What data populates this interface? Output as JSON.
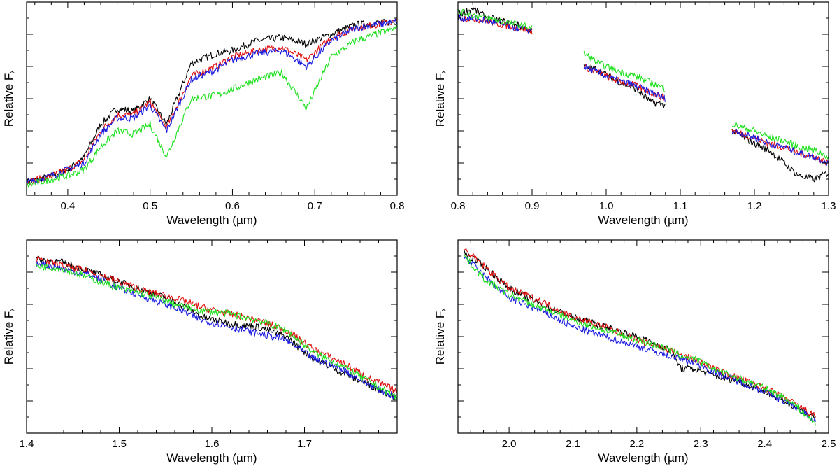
{
  "figure": {
    "caption_style": "four-panel spectral comparison"
  },
  "colors": {
    "black": "#000000",
    "red": "#e01010",
    "blue": "#1a1ae0",
    "green": "#1fe01f"
  },
  "chart_data": [
    {
      "type": "line",
      "xlabel": "Wavelength (µm)",
      "ylabel": "Relative F",
      "ylabel_sub": "λ",
      "xlim": [
        0.35,
        0.8
      ],
      "ylim": [
        0,
        6
      ],
      "xticks": [
        0.4,
        0.5,
        0.6,
        0.7,
        0.8
      ],
      "xtick_labels": [
        "0.4",
        "0.5",
        "0.6",
        "0.7",
        "0.8"
      ],
      "yticks_major": [
        1,
        2,
        3,
        4,
        5
      ],
      "segments": [
        [
          0.35,
          0.8
        ]
      ],
      "series": [
        {
          "name": "black",
          "color": "#000000",
          "x": [
            0.35,
            0.38,
            0.4,
            0.42,
            0.44,
            0.46,
            0.48,
            0.5,
            0.52,
            0.55,
            0.58,
            0.6,
            0.63,
            0.66,
            0.69,
            0.72,
            0.75,
            0.8
          ],
          "y": [
            0.4,
            0.6,
            0.8,
            1.2,
            2.2,
            2.7,
            2.6,
            3.0,
            2.2,
            4.1,
            4.4,
            4.5,
            4.8,
            4.9,
            4.7,
            5.0,
            5.3,
            5.4
          ]
        },
        {
          "name": "red",
          "color": "#e01010",
          "x": [
            0.35,
            0.38,
            0.4,
            0.42,
            0.44,
            0.46,
            0.48,
            0.5,
            0.52,
            0.55,
            0.58,
            0.6,
            0.63,
            0.66,
            0.69,
            0.72,
            0.75,
            0.8
          ],
          "y": [
            0.4,
            0.6,
            0.8,
            1.1,
            2.0,
            2.5,
            2.5,
            2.9,
            2.1,
            3.7,
            4.0,
            4.3,
            4.5,
            4.6,
            4.2,
            4.9,
            5.2,
            5.4
          ]
        },
        {
          "name": "blue",
          "color": "#1a1ae0",
          "x": [
            0.35,
            0.38,
            0.4,
            0.42,
            0.44,
            0.46,
            0.48,
            0.5,
            0.52,
            0.55,
            0.58,
            0.6,
            0.63,
            0.66,
            0.69,
            0.72,
            0.75,
            0.8
          ],
          "y": [
            0.4,
            0.6,
            0.8,
            1.0,
            1.9,
            2.4,
            2.4,
            2.8,
            2.0,
            3.6,
            3.9,
            4.2,
            4.4,
            4.5,
            4.0,
            4.8,
            5.2,
            5.4
          ]
        },
        {
          "name": "green",
          "color": "#1fe01f",
          "x": [
            0.35,
            0.38,
            0.4,
            0.42,
            0.44,
            0.46,
            0.48,
            0.5,
            0.52,
            0.55,
            0.58,
            0.6,
            0.63,
            0.66,
            0.69,
            0.72,
            0.75,
            0.8
          ],
          "y": [
            0.3,
            0.5,
            0.6,
            0.8,
            1.5,
            2.0,
            1.9,
            2.2,
            1.2,
            3.0,
            3.1,
            3.3,
            3.6,
            3.8,
            2.7,
            4.3,
            4.8,
            5.2
          ]
        }
      ]
    },
    {
      "type": "line",
      "xlabel": "Wavelength (µm)",
      "ylabel": "Relative F",
      "ylabel_sub": "λ",
      "xlim": [
        0.8,
        1.3
      ],
      "ylim": [
        0,
        6
      ],
      "xticks": [
        0.8,
        0.9,
        1.0,
        1.1,
        1.2,
        1.3
      ],
      "xtick_labels": [
        "0.8",
        "0.9",
        "1.0",
        "1.1",
        "1.2",
        "1.3"
      ],
      "yticks_major": [
        1,
        2,
        3,
        4,
        5
      ],
      "segments": [
        [
          0.8,
          0.9
        ],
        [
          0.97,
          1.08
        ],
        [
          1.17,
          1.3
        ]
      ],
      "series": [
        {
          "name": "black",
          "color": "#000000",
          "x": [
            0.8,
            0.82,
            0.84,
            0.86,
            0.88,
            0.9,
            0.97,
            0.99,
            1.01,
            1.04,
            1.06,
            1.08,
            1.17,
            1.2,
            1.22,
            1.24,
            1.26,
            1.28,
            1.3
          ],
          "y": [
            5.6,
            5.8,
            5.5,
            5.4,
            5.3,
            5.1,
            4.0,
            3.9,
            3.6,
            3.3,
            2.9,
            2.8,
            2.0,
            1.6,
            1.4,
            1.0,
            0.6,
            0.5,
            0.7
          ]
        },
        {
          "name": "red",
          "color": "#e01010",
          "x": [
            0.8,
            0.82,
            0.84,
            0.86,
            0.88,
            0.9,
            0.97,
            0.99,
            1.01,
            1.04,
            1.06,
            1.08,
            1.17,
            1.2,
            1.22,
            1.24,
            1.26,
            1.28,
            1.3
          ],
          "y": [
            5.5,
            5.5,
            5.4,
            5.3,
            5.2,
            5.1,
            4.0,
            3.8,
            3.6,
            3.4,
            3.2,
            3.0,
            2.0,
            1.8,
            1.6,
            1.5,
            1.3,
            1.2,
            1.0
          ]
        },
        {
          "name": "blue",
          "color": "#1a1ae0",
          "x": [
            0.8,
            0.82,
            0.84,
            0.86,
            0.88,
            0.9,
            0.97,
            0.99,
            1.01,
            1.04,
            1.06,
            1.08,
            1.17,
            1.2,
            1.22,
            1.24,
            1.26,
            1.28,
            1.3
          ],
          "y": [
            5.5,
            5.5,
            5.4,
            5.3,
            5.2,
            5.1,
            4.0,
            3.8,
            3.6,
            3.4,
            3.2,
            3.0,
            2.0,
            1.8,
            1.6,
            1.5,
            1.3,
            1.2,
            1.0
          ]
        },
        {
          "name": "green",
          "color": "#1fe01f",
          "x": [
            0.8,
            0.82,
            0.84,
            0.86,
            0.88,
            0.9,
            0.97,
            0.99,
            1.01,
            1.04,
            1.06,
            1.08,
            1.17,
            1.2,
            1.22,
            1.24,
            1.26,
            1.28,
            1.3
          ],
          "y": [
            5.7,
            5.6,
            5.5,
            5.4,
            5.3,
            5.2,
            4.4,
            4.1,
            3.9,
            3.7,
            3.5,
            3.3,
            2.2,
            2.0,
            1.8,
            1.7,
            1.5,
            1.4,
            1.2
          ]
        }
      ]
    },
    {
      "type": "line",
      "xlabel": "Wavelength (µm)",
      "ylabel": "Relative F",
      "ylabel_sub": "λ",
      "xlim": [
        1.4,
        1.8
      ],
      "ylim": [
        0,
        6
      ],
      "xticks": [
        1.4,
        1.5,
        1.6,
        1.7
      ],
      "xtick_labels": [
        "1.4",
        "1.5",
        "1.6",
        "1.7"
      ],
      "yticks_major": [
        1,
        2,
        3,
        4,
        5
      ],
      "segments": [
        [
          1.41,
          1.8
        ]
      ],
      "series": [
        {
          "name": "black",
          "color": "#000000",
          "x": [
            1.41,
            1.44,
            1.47,
            1.5,
            1.53,
            1.56,
            1.59,
            1.62,
            1.65,
            1.68,
            1.71,
            1.74,
            1.77,
            1.8
          ],
          "y": [
            5.4,
            5.3,
            5.0,
            4.7,
            4.4,
            4.1,
            3.6,
            3.4,
            3.3,
            3.0,
            2.3,
            1.9,
            1.5,
            1.1
          ]
        },
        {
          "name": "red",
          "color": "#e01010",
          "x": [
            1.41,
            1.44,
            1.47,
            1.5,
            1.53,
            1.56,
            1.59,
            1.62,
            1.65,
            1.68,
            1.71,
            1.74,
            1.77,
            1.8
          ],
          "y": [
            5.4,
            5.2,
            5.0,
            4.7,
            4.4,
            4.2,
            3.9,
            3.7,
            3.5,
            3.2,
            2.6,
            2.2,
            1.7,
            1.3
          ]
        },
        {
          "name": "blue",
          "color": "#1a1ae0",
          "x": [
            1.41,
            1.44,
            1.47,
            1.5,
            1.53,
            1.56,
            1.59,
            1.62,
            1.65,
            1.68,
            1.71,
            1.74,
            1.77,
            1.8
          ],
          "y": [
            5.3,
            5.1,
            4.9,
            4.5,
            4.2,
            3.9,
            3.5,
            3.3,
            3.1,
            2.9,
            2.3,
            2.0,
            1.5,
            1.1
          ]
        },
        {
          "name": "green",
          "color": "#1fe01f",
          "x": [
            1.41,
            1.44,
            1.47,
            1.5,
            1.53,
            1.56,
            1.59,
            1.62,
            1.65,
            1.68,
            1.71,
            1.74,
            1.77,
            1.8
          ],
          "y": [
            5.2,
            5.1,
            4.8,
            4.5,
            4.3,
            4.0,
            3.8,
            3.7,
            3.5,
            3.2,
            2.5,
            2.1,
            1.6,
            1.1
          ]
        }
      ]
    },
    {
      "type": "line",
      "xlabel": "Wavelength (µm)",
      "ylabel": "Relative F",
      "ylabel_sub": "λ",
      "xlim": [
        1.92,
        2.5
      ],
      "ylim": [
        0,
        6
      ],
      "xticks": [
        2.0,
        2.1,
        2.2,
        2.3,
        2.4,
        2.5
      ],
      "xtick_labels": [
        "2.0",
        "2.1",
        "2.2",
        "2.3",
        "2.4",
        "2.5"
      ],
      "yticks_major": [
        1,
        2,
        3,
        4,
        5
      ],
      "segments": [
        [
          1.93,
          2.48
        ]
      ],
      "series": [
        {
          "name": "black",
          "color": "#000000",
          "x": [
            1.93,
            1.96,
            2.0,
            2.05,
            2.1,
            2.15,
            2.2,
            2.25,
            2.27,
            2.29,
            2.32,
            2.36,
            2.4,
            2.44,
            2.48
          ],
          "y": [
            5.6,
            5.2,
            4.5,
            4.0,
            3.6,
            3.3,
            3.0,
            2.6,
            2.0,
            2.0,
            1.8,
            1.6,
            1.3,
            0.9,
            0.5
          ]
        },
        {
          "name": "red",
          "color": "#e01010",
          "x": [
            1.93,
            1.96,
            2.0,
            2.05,
            2.1,
            2.15,
            2.2,
            2.25,
            2.27,
            2.29,
            2.32,
            2.36,
            2.4,
            2.44,
            2.48
          ],
          "y": [
            5.7,
            5.2,
            4.5,
            4.1,
            3.6,
            3.3,
            2.9,
            2.6,
            2.4,
            2.3,
            2.0,
            1.7,
            1.4,
            1.0,
            0.5
          ]
        },
        {
          "name": "blue",
          "color": "#1a1ae0",
          "x": [
            1.93,
            1.96,
            2.0,
            2.05,
            2.1,
            2.15,
            2.2,
            2.25,
            2.27,
            2.29,
            2.32,
            2.36,
            2.4,
            2.44,
            2.48
          ],
          "y": [
            5.5,
            4.9,
            4.2,
            3.8,
            3.3,
            3.0,
            2.7,
            2.4,
            2.3,
            2.2,
            1.9,
            1.6,
            1.3,
            0.9,
            0.4
          ]
        },
        {
          "name": "green",
          "color": "#1fe01f",
          "x": [
            1.93,
            1.96,
            2.0,
            2.05,
            2.1,
            2.15,
            2.2,
            2.25,
            2.27,
            2.29,
            2.32,
            2.36,
            2.4,
            2.44,
            2.48
          ],
          "y": [
            5.5,
            4.8,
            4.3,
            3.9,
            3.5,
            3.2,
            2.9,
            2.6,
            2.4,
            2.3,
            2.0,
            1.7,
            1.4,
            1.0,
            0.3
          ]
        }
      ]
    }
  ]
}
